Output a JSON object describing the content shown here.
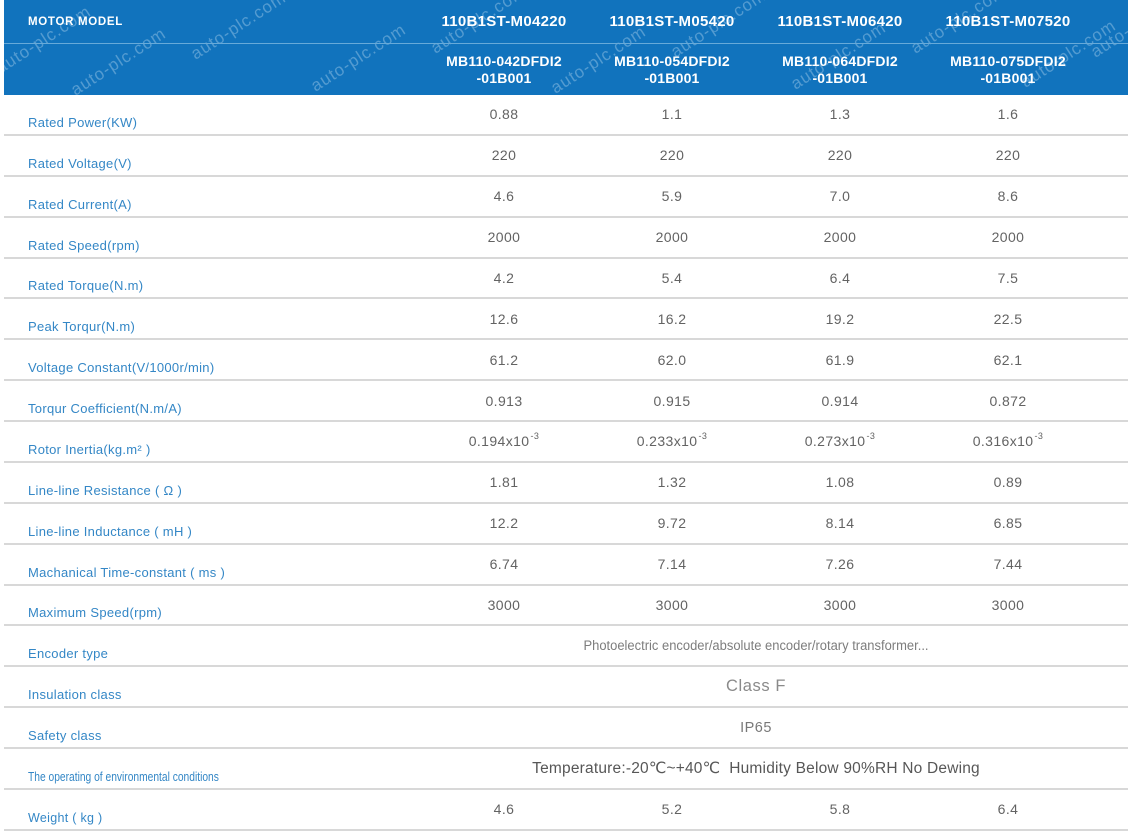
{
  "watermark": "auto-plc.com",
  "header": {
    "label": "MOTOR MODEL",
    "models": [
      "110B1ST-M04220",
      "110B1ST-M05420",
      "110B1ST-M06420",
      "110B1ST-M07520"
    ],
    "sub_models": [
      {
        "line1": "MB110-042DFDI2",
        "line2": "-01B001"
      },
      {
        "line1": "MB110-054DFDI2",
        "line2": "-01B001"
      },
      {
        "line1": "MB110-064DFDI2",
        "line2": "-01B001"
      },
      {
        "line1": "MB110-075DFDI2",
        "line2": "-01B001"
      }
    ]
  },
  "table": {
    "rows": [
      {
        "type": "values",
        "label": "Rated Power(KW)",
        "values": [
          "0.88",
          "1.1",
          "1.3",
          "1.6"
        ]
      },
      {
        "type": "values",
        "label": "Rated Voltage(V)",
        "values": [
          "220",
          "220",
          "220",
          "220"
        ]
      },
      {
        "type": "values",
        "label": "Rated Current(A)",
        "values": [
          "4.6",
          "5.9",
          "7.0",
          "8.6"
        ]
      },
      {
        "type": "values",
        "label": "Rated Speed(rpm)",
        "values": [
          "2000",
          "2000",
          "2000",
          "2000"
        ]
      },
      {
        "type": "values",
        "label": "Rated Torque(N.m)",
        "values": [
          "4.2",
          "5.4",
          "6.4",
          "7.5"
        ]
      },
      {
        "type": "values",
        "label": "Peak Torqur(N.m)",
        "values": [
          "12.6",
          "16.2",
          "19.2",
          "22.5"
        ]
      },
      {
        "type": "values",
        "label": "Voltage Constant(V/1000r/min)",
        "values": [
          "61.2",
          "62.0",
          "61.9",
          "62.1"
        ]
      },
      {
        "type": "values",
        "label": "Torqur Coefficient(N.m/A)",
        "values": [
          "0.913",
          "0.915",
          "0.914",
          "0.872"
        ]
      },
      {
        "type": "values",
        "label": "Rotor Inertia(kg.m² )",
        "values": [
          {
            "base": "0.194x10",
            "sup": "-3"
          },
          {
            "base": "0.233x10",
            "sup": "-3"
          },
          {
            "base": "0.273x10",
            "sup": "-3"
          },
          {
            "base": "0.316x10",
            "sup": "-3"
          }
        ]
      },
      {
        "type": "values",
        "label": "Line-line Resistance ( Ω )",
        "values": [
          "1.81",
          "1.32",
          "1.08",
          "0.89"
        ]
      },
      {
        "type": "values",
        "label": "Line-line Inductance ( mH )",
        "values": [
          "12.2",
          "9.72",
          "8.14",
          "6.85"
        ]
      },
      {
        "type": "values",
        "label": "Machanical Time-constant ( ms )",
        "values": [
          "6.74",
          "7.14",
          "7.26",
          "7.44"
        ]
      },
      {
        "type": "values",
        "label": "Maximum Speed(rpm)",
        "values": [
          "3000",
          "3000",
          "3000",
          "3000"
        ]
      },
      {
        "type": "merged",
        "label": "Encoder type",
        "value": "Photoelectric encoder/absolute encoder/rotary transformer...",
        "style": "encoder"
      },
      {
        "type": "merged",
        "label": "Insulation class",
        "value": "Class F",
        "style": "large"
      },
      {
        "type": "merged",
        "label": "Safety class",
        "value": "IP65",
        "style": "normal"
      },
      {
        "type": "merged",
        "label": "The operating of environmental conditions",
        "value": "Temperature:-20℃~+40℃  Humidity Below 90%RH No Dewing",
        "style": "temp",
        "label_style": "condensed"
      },
      {
        "type": "values",
        "label": "Weight ( kg )",
        "values": [
          "4.6",
          "5.2",
          "5.8",
          "6.4"
        ],
        "label_style": "small"
      }
    ]
  },
  "colors": {
    "header_bg": "#1173bd",
    "header_divider": "#67aad9",
    "label_text": "#3487c6",
    "value_text": "#636363",
    "row_line": "#d8d8d8"
  }
}
